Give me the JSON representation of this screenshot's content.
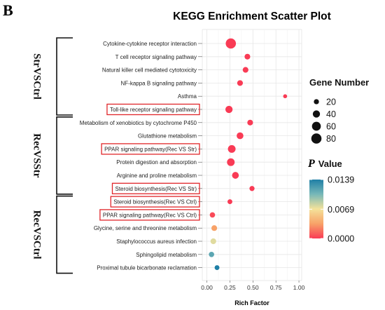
{
  "panel_letter": "B",
  "chart_data": {
    "type": "scatter",
    "title": "KEGG Enrichment Scatter Plot",
    "xlabel": "Rich Factor",
    "ylabel": "",
    "xlim": [
      -0.05,
      1.03
    ],
    "xticks": [
      "0.00",
      "0.25",
      "0.50",
      "0.75",
      "1.00"
    ],
    "xtick_values": [
      0,
      0.25,
      0.5,
      0.75,
      1.0
    ],
    "grid": true,
    "groups": [
      {
        "label": "StrVSCtrl",
        "first": 0,
        "last": 5
      },
      {
        "label": "RecVSStr",
        "first": 6,
        "last": 11
      },
      {
        "label": "RecVSCtrl",
        "first": 12,
        "last": 17
      }
    ],
    "points": [
      {
        "pathway": "Cytokine-cytokine receptor interaction",
        "rich_factor": 0.26,
        "gene_number": 80,
        "p_value": 0.0,
        "boxed": false
      },
      {
        "pathway": "T cell receptor signaling pathway",
        "rich_factor": 0.44,
        "gene_number": 25,
        "p_value": 0.0,
        "boxed": false
      },
      {
        "pathway": "Natural killer cell mediated cytotoxicity",
        "rich_factor": 0.42,
        "gene_number": 25,
        "p_value": 0.0,
        "boxed": false
      },
      {
        "pathway": "NF-kappa B signaling pathway",
        "rich_factor": 0.36,
        "gene_number": 25,
        "p_value": 0.0,
        "boxed": false
      },
      {
        "pathway": "Asthma",
        "rich_factor": 0.85,
        "gene_number": 12,
        "p_value": 0.0,
        "boxed": false
      },
      {
        "pathway": "Toll-like receptor signaling pathway",
        "rich_factor": 0.24,
        "gene_number": 40,
        "p_value": 0.0,
        "boxed": true
      },
      {
        "pathway": "Metabolism of xenobiotics by cytochrome P450",
        "rich_factor": 0.47,
        "gene_number": 25,
        "p_value": 0.0,
        "boxed": false
      },
      {
        "pathway": "Glutathione metabolism",
        "rich_factor": 0.36,
        "gene_number": 35,
        "p_value": 0.0,
        "boxed": false
      },
      {
        "pathway": "PPAR signaling pathway(Rec VS Str)",
        "rich_factor": 0.27,
        "gene_number": 45,
        "p_value": 0.0,
        "boxed": true
      },
      {
        "pathway": "Protein digestion and absorption",
        "rich_factor": 0.26,
        "gene_number": 45,
        "p_value": 0.0,
        "boxed": false
      },
      {
        "pathway": "Arginine and proline metabolism",
        "rich_factor": 0.31,
        "gene_number": 35,
        "p_value": 0.0,
        "boxed": false
      },
      {
        "pathway": "Steroid biosynthesis(Rec VS Str)",
        "rich_factor": 0.49,
        "gene_number": 20,
        "p_value": 0.0,
        "boxed": true
      },
      {
        "pathway": "Steroid biosynthesis(Rec VS Ctrl)",
        "rich_factor": 0.25,
        "gene_number": 18,
        "p_value": 0.0,
        "boxed": true
      },
      {
        "pathway": "PPAR signaling pathway(Rec VS Ctrl)",
        "rich_factor": 0.06,
        "gene_number": 22,
        "p_value": 0.0005,
        "boxed": true
      },
      {
        "pathway": "Glycine, serine and threonine metabolism",
        "rich_factor": 0.08,
        "gene_number": 25,
        "p_value": 0.0035,
        "boxed": false
      },
      {
        "pathway": "Staphylococcus aureus infection",
        "rich_factor": 0.07,
        "gene_number": 25,
        "p_value": 0.0075,
        "boxed": false
      },
      {
        "pathway": "Sphingolipid metabolism",
        "rich_factor": 0.05,
        "gene_number": 22,
        "p_value": 0.0115,
        "boxed": false
      },
      {
        "pathway": "Proximal tubule bicarbonate reclamation",
        "rich_factor": 0.11,
        "gene_number": 18,
        "p_value": 0.0139,
        "boxed": false
      }
    ],
    "size_legend": {
      "title": "Gene Number",
      "values": [
        20,
        40,
        60,
        80
      ]
    },
    "color_legend": {
      "title_italic": "P",
      "title_rest": "Value",
      "ticks": [
        "0.0139",
        "0.0069",
        "0.0000"
      ],
      "tick_values": [
        0.0139,
        0.0069,
        0.0
      ],
      "range": [
        0.0,
        0.0139
      ],
      "colors": [
        "#f93b55",
        "#f8a268",
        "#f4e29a",
        "#77b8b8",
        "#1f7fa6"
      ]
    }
  }
}
